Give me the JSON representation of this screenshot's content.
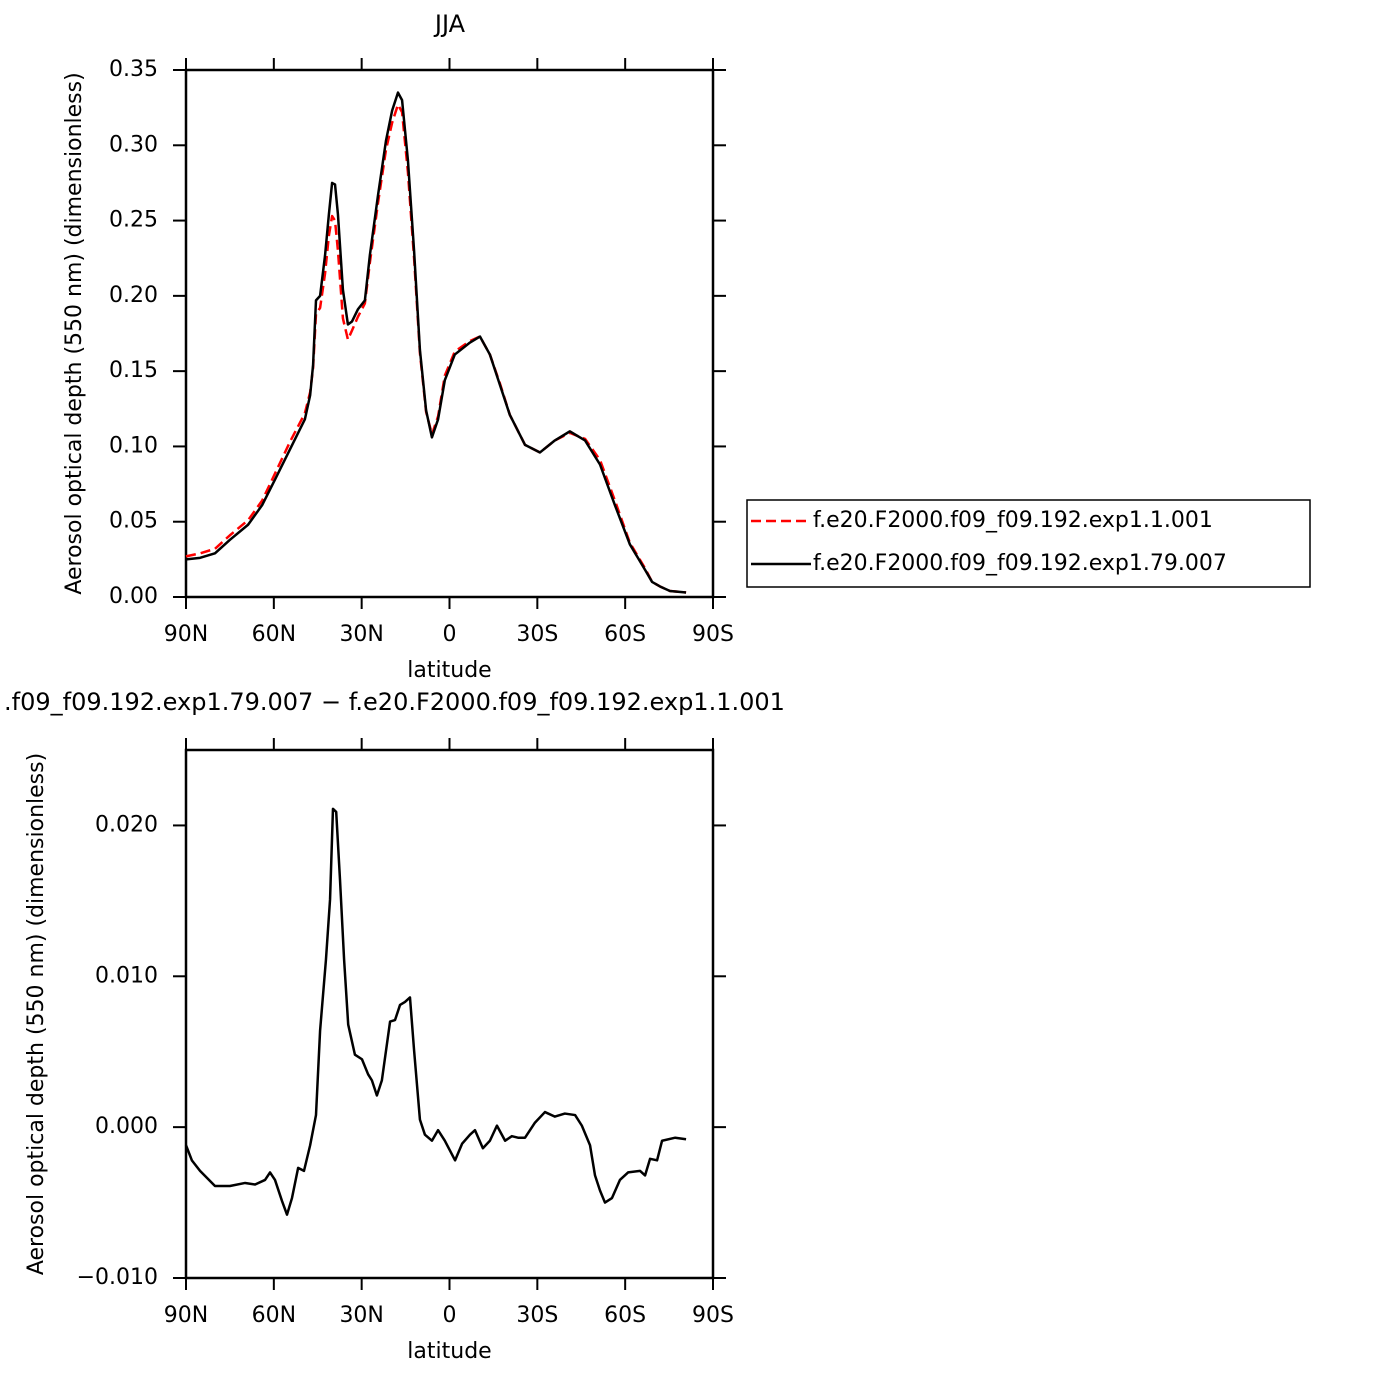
{
  "chart_data": [
    {
      "type": "line",
      "title": "JJA",
      "xlabel": "latitude",
      "ylabel": "Aerosol optical depth (550 nm) (dimensionless)",
      "xlim": [
        90,
        -90
      ],
      "ylim": [
        0,
        0.35
      ],
      "xticks": [
        {
          "value": 90,
          "label": "90N"
        },
        {
          "value": 60,
          "label": "60N"
        },
        {
          "value": 30,
          "label": "30N"
        },
        0,
        {
          "value": -30,
          "label": "30S"
        },
        {
          "value": -60,
          "label": "60S"
        },
        {
          "value": -90,
          "label": "90S"
        }
      ],
      "yticks": [
        {
          "value": 0,
          "label": "0.00"
        },
        {
          "value": 0.05,
          "label": "0.05"
        },
        {
          "value": 0.1,
          "label": "0.10"
        },
        {
          "value": 0.15,
          "label": "0.15"
        },
        {
          "value": 0.2,
          "label": "0.20"
        },
        {
          "value": 0.25,
          "label": "0.25"
        },
        {
          "value": 0.3,
          "label": "0.30"
        },
        {
          "value": 0.35,
          "label": "0.35"
        }
      ],
      "legend": "right",
      "x": [
        90,
        85.2,
        80.1,
        75,
        68.8,
        64,
        59.6,
        54.5,
        49.4,
        47.6,
        46.6,
        45.6,
        44.2,
        42.5,
        41.2,
        40.1,
        39.1,
        38.1,
        36.4,
        34.7,
        33.3,
        31.3,
        28.9,
        27.2,
        24.4,
        21.7,
        19.6,
        17.6,
        16.2,
        14.2,
        12.1,
        10.1,
        8,
        6,
        3.9,
        1.6,
        -1.8,
        -7,
        -10.4,
        -13.8,
        -17.2,
        -20.6,
        -25.8,
        -30.9,
        -36,
        -41.1,
        -46.3,
        -51.4,
        -56.5,
        -61.6,
        -66.8,
        -69.2,
        -71.9,
        -75.3,
        -80.8
      ],
      "series": [
        {
          "name": "f.e20.F2000.f09_f09.192.exp1.1.001",
          "color": "#ff0000",
          "line_style": "dashed",
          "values": [
            0.027,
            0.029,
            0.032,
            0.041,
            0.051,
            0.064,
            0.082,
            0.103,
            0.122,
            0.136,
            0.152,
            0.188,
            0.192,
            0.215,
            0.24,
            0.253,
            0.25,
            0.23,
            0.185,
            0.171,
            0.177,
            0.186,
            0.195,
            0.222,
            0.262,
            0.297,
            0.315,
            0.327,
            0.322,
            0.282,
            0.225,
            0.162,
            0.123,
            0.108,
            0.12,
            0.147,
            0.163,
            0.17,
            0.173,
            0.161,
            0.142,
            0.121,
            0.101,
            0.096,
            0.104,
            0.109,
            0.105,
            0.091,
            0.064,
            0.036,
            0.019,
            0.01,
            0.007,
            0.004,
            0.003
          ]
        },
        {
          "name": "f.e20.F2000.f09_f09.192.exp1.79.007",
          "color": "#000000",
          "line_style": "solid",
          "values": [
            0.025,
            0.026,
            0.029,
            0.038,
            0.048,
            0.061,
            0.078,
            0.098,
            0.118,
            0.134,
            0.154,
            0.197,
            0.2,
            0.227,
            0.254,
            0.275,
            0.274,
            0.254,
            0.204,
            0.181,
            0.183,
            0.191,
            0.197,
            0.227,
            0.267,
            0.303,
            0.323,
            0.335,
            0.33,
            0.29,
            0.23,
            0.164,
            0.124,
            0.106,
            0.118,
            0.144,
            0.161,
            0.169,
            0.173,
            0.161,
            0.141,
            0.121,
            0.101,
            0.096,
            0.104,
            0.11,
            0.104,
            0.088,
            0.061,
            0.035,
            0.018,
            0.01,
            0.007,
            0.004,
            0.003
          ]
        }
      ]
    },
    {
      "type": "line",
      "title": ".f09_f09.192.exp1.79.007 − f.e20.F2000.f09_f09.192.exp1.1.001",
      "xlabel": "latitude",
      "ylabel": "Aerosol optical depth (550 nm) (dimensionless)",
      "xlim": [
        90,
        -90
      ],
      "ylim": [
        -0.01,
        0.025
      ],
      "xticks": [
        {
          "value": 90,
          "label": "90N"
        },
        {
          "value": 60,
          "label": "60N"
        },
        {
          "value": 30,
          "label": "30N"
        },
        0,
        {
          "value": -30,
          "label": "30S"
        },
        {
          "value": -60,
          "label": "60S"
        },
        {
          "value": -90,
          "label": "90S"
        }
      ],
      "yticks": [
        {
          "value": -0.01,
          "label": "−0.010"
        },
        {
          "value": 0,
          "label": "0.000"
        },
        {
          "value": 0.01,
          "label": "0.010"
        },
        {
          "value": 0.02,
          "label": "0.020"
        }
      ],
      "x": [
        90,
        88,
        85.2,
        80.1,
        75,
        69.8,
        66.4,
        63,
        61.3,
        59.6,
        57.2,
        55.5,
        53.8,
        51.7,
        49.7,
        47.6,
        45.6,
        44.2,
        42.2,
        40.8,
        39.8,
        38.7,
        37.4,
        36,
        34.6,
        32.3,
        29.9,
        27.8,
        26.5,
        24.8,
        23.1,
        20.3,
        18.6,
        16.9,
        15.2,
        13.5,
        12.1,
        10.1,
        8.4,
        6,
        3.9,
        1.6,
        -1.9,
        -4.3,
        -7,
        -8.7,
        -11.4,
        -13.8,
        -16.2,
        -19,
        -21.3,
        -23.4,
        -25.8,
        -29.2,
        -32.6,
        -36,
        -39.4,
        -42.9,
        -45.2,
        -48,
        -49.7,
        -51.4,
        -53.1,
        -55.5,
        -58.2,
        -61,
        -65.1,
        -66.8,
        -68.5,
        -70.9,
        -72.6,
        -77.1,
        -80.8
      ],
      "series": [
        {
          "color": "#000000",
          "line_style": "solid",
          "values": [
            -0.0012,
            -0.0022,
            -0.0029,
            -0.0039,
            -0.0039,
            -0.0037,
            -0.0038,
            -0.0035,
            -0.003,
            -0.0035,
            -0.0049,
            -0.0058,
            -0.0047,
            -0.0027,
            -0.0029,
            -0.0012,
            0.0008,
            0.0064,
            0.0111,
            0.0151,
            0.0211,
            0.0209,
            0.0164,
            0.0111,
            0.0068,
            0.0048,
            0.0045,
            0.0035,
            0.0031,
            0.0021,
            0.0031,
            0.007,
            0.0071,
            0.0081,
            0.0083,
            0.0086,
            0.0051,
            0.0005,
            -0.0005,
            -0.0009,
            -0.0002,
            -0.0009,
            -0.0022,
            -0.0011,
            -0.0005,
            -0.0002,
            -0.0014,
            -0.0009,
            0.0001,
            -0.0009,
            -0.0006,
            -0.0007,
            -0.0007,
            0.0003,
            0.001,
            0.0007,
            0.0009,
            0.0008,
            0.0001,
            -0.0012,
            -0.0032,
            -0.0042,
            -0.005,
            -0.0047,
            -0.0035,
            -0.003,
            -0.0029,
            -0.0032,
            -0.0021,
            -0.0022,
            -0.0009,
            -0.0007,
            -0.0008
          ]
        }
      ]
    }
  ]
}
